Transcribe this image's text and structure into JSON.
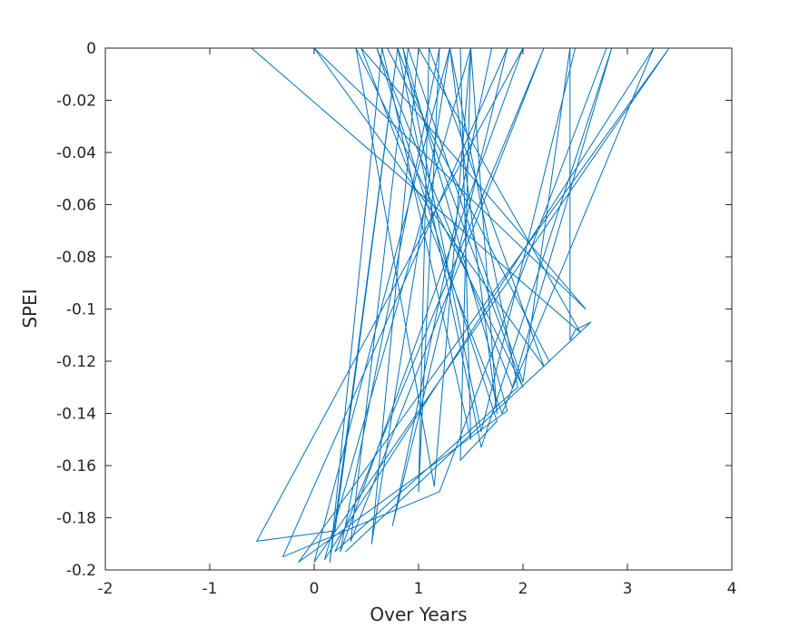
{
  "chart_data": {
    "type": "line",
    "title": "",
    "xlabel": "Over Years",
    "ylabel": "SPEI",
    "xlim": [
      -2,
      4
    ],
    "ylim": [
      -0.2,
      0
    ],
    "xticks": [
      -2,
      -1,
      0,
      1,
      2,
      3,
      4
    ],
    "xtick_labels": [
      "-2",
      "-1",
      "0",
      "1",
      "2",
      "3",
      "4"
    ],
    "yticks": [
      0,
      -0.02,
      -0.04,
      -0.06,
      -0.08,
      -0.1,
      -0.12,
      -0.14,
      -0.16,
      -0.18,
      -0.2
    ],
    "ytick_labels": [
      "0",
      "-0.02",
      "-0.04",
      "-0.06",
      "-0.08",
      "-0.1",
      "-0.12",
      "-0.14",
      "-0.16",
      "-0.18",
      "-0.2"
    ],
    "grid": false,
    "line_color": "#0072BD",
    "series": [
      {
        "x": [
          -1.7,
          0.7,
          1.1,
          1.75,
          -0.6,
          2.55,
          1.0,
          0.55,
          1.3,
          1.95,
          0.2,
          2.2,
          0.35,
          0.9,
          2.0,
          2.45,
          2.45,
          2.5,
          2.65,
          0.3,
          2.25,
          0.7,
          2.5,
          1.6,
          0.85,
          1.85,
          -0.15,
          3.4,
          0.0,
          1.3,
          1.75,
          1.5,
          1.4,
          1.75,
          0.6,
          1.9,
          2.85,
          1.6,
          0.8,
          2.0,
          0.4,
          1.15,
          1.5,
          0.1,
          3.25,
          1.8,
          0.45,
          2.6,
          0.0,
          2.2,
          1.1,
          1.0,
          1.2,
          0.25,
          2.0,
          -0.55,
          0.2,
          0.8,
          0.15,
          0.65,
          1.5,
          1.4,
          2.8,
          1.2,
          -0.3,
          1.85,
          0.75,
          1.7
        ],
        "y": [
          0.0,
          0.0,
          0.0,
          0.0,
          0.0,
          -0.109,
          0.0,
          -0.19,
          0.0,
          -0.13,
          -0.193,
          0.0,
          -0.189,
          0.0,
          -0.128,
          0.0,
          -0.112,
          -0.108,
          -0.105,
          -0.193,
          -0.12,
          0.0,
          0.0,
          -0.147,
          0.0,
          -0.139,
          -0.197,
          0.0,
          -0.197,
          0.0,
          -0.14,
          0.0,
          -0.158,
          -0.143,
          0.0,
          -0.13,
          0.0,
          -0.153,
          0.0,
          -0.13,
          0.0,
          -0.168,
          0.0,
          -0.196,
          0.0,
          -0.14,
          0.0,
          -0.1,
          0.0,
          -0.122,
          0.0,
          -0.17,
          0.0,
          -0.193,
          0.0,
          -0.189,
          -0.185,
          0.0,
          -0.197,
          0.0,
          -0.15,
          0.0,
          0.0,
          -0.17,
          -0.195,
          0.0,
          -0.183,
          0.0
        ]
      }
    ]
  }
}
